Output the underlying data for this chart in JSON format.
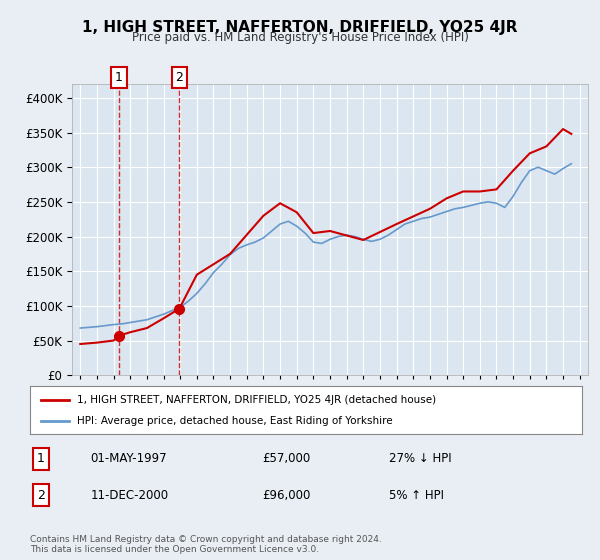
{
  "title": "1, HIGH STREET, NAFFERTON, DRIFFIELD, YO25 4JR",
  "subtitle": "Price paid vs. HM Land Registry's House Price Index (HPI)",
  "legend_label_red": "1, HIGH STREET, NAFFERTON, DRIFFIELD, YO25 4JR (detached house)",
  "legend_label_blue": "HPI: Average price, detached house, East Riding of Yorkshire",
  "footer": "Contains HM Land Registry data © Crown copyright and database right 2024.\nThis data is licensed under the Open Government Licence v3.0.",
  "transactions": [
    {
      "num": 1,
      "date": "01-MAY-1997",
      "price": 57000,
      "hpi_rel": "27% ↓ HPI",
      "year": 1997.33
    },
    {
      "num": 2,
      "date": "11-DEC-2000",
      "price": 96000,
      "hpi_rel": "5% ↑ HPI",
      "year": 2000.95
    }
  ],
  "hpi_data": {
    "years": [
      1995,
      1995.5,
      1996,
      1996.5,
      1997,
      1997.5,
      1998,
      1998.5,
      1999,
      1999.5,
      2000,
      2000.5,
      2001,
      2001.5,
      2002,
      2002.5,
      2003,
      2003.5,
      2004,
      2004.5,
      2005,
      2005.5,
      2006,
      2006.5,
      2007,
      2007.5,
      2008,
      2008.5,
      2009,
      2009.5,
      2010,
      2010.5,
      2011,
      2011.5,
      2012,
      2012.5,
      2013,
      2013.5,
      2014,
      2014.5,
      2015,
      2015.5,
      2016,
      2016.5,
      2017,
      2017.5,
      2018,
      2018.5,
      2019,
      2019.5,
      2020,
      2020.5,
      2021,
      2021.5,
      2022,
      2022.5,
      2023,
      2023.5,
      2024,
      2024.5
    ],
    "values": [
      68000,
      69000,
      70000,
      71500,
      73000,
      74000,
      76000,
      78000,
      80000,
      84000,
      88000,
      93000,
      98000,
      107000,
      118000,
      132000,
      148000,
      160000,
      174000,
      183000,
      188000,
      192000,
      198000,
      208000,
      218000,
      222000,
      215000,
      205000,
      192000,
      190000,
      196000,
      200000,
      202000,
      200000,
      196000,
      193000,
      196000,
      202000,
      210000,
      218000,
      222000,
      226000,
      228000,
      232000,
      236000,
      240000,
      242000,
      245000,
      248000,
      250000,
      248000,
      242000,
      258000,
      278000,
      295000,
      300000,
      295000,
      290000,
      298000,
      305000
    ]
  },
  "price_paid_data": {
    "years": [
      1995,
      1996,
      1997,
      1997.33,
      1998,
      1999,
      2000,
      2000.95,
      2002,
      2004,
      2006,
      2007,
      2008,
      2009,
      2010,
      2012,
      2014,
      2016,
      2017,
      2018,
      2019,
      2020,
      2021,
      2022,
      2023,
      2024,
      2024.5
    ],
    "values": [
      45000,
      47000,
      50000,
      57000,
      62000,
      68000,
      82000,
      96000,
      145000,
      175000,
      230000,
      248000,
      235000,
      205000,
      208000,
      195000,
      218000,
      240000,
      255000,
      265000,
      265000,
      268000,
      295000,
      320000,
      330000,
      355000,
      348000
    ]
  },
  "ylim": [
    0,
    420000
  ],
  "xlim": [
    1994.5,
    2025.5
  ],
  "yticks": [
    0,
    50000,
    100000,
    150000,
    200000,
    250000,
    300000,
    350000,
    400000
  ],
  "xticks": [
    1995,
    1996,
    1997,
    1998,
    1999,
    2000,
    2001,
    2002,
    2003,
    2004,
    2005,
    2006,
    2007,
    2008,
    2009,
    2010,
    2011,
    2012,
    2013,
    2014,
    2015,
    2016,
    2017,
    2018,
    2019,
    2020,
    2021,
    2022,
    2023,
    2024,
    2025
  ],
  "background_color": "#e8eef4",
  "plot_bg_color": "#dce6f0",
  "red_color": "#cc0000",
  "blue_color": "#6699cc",
  "grid_color": "#ffffff",
  "marker_box_color": "#cc0000"
}
